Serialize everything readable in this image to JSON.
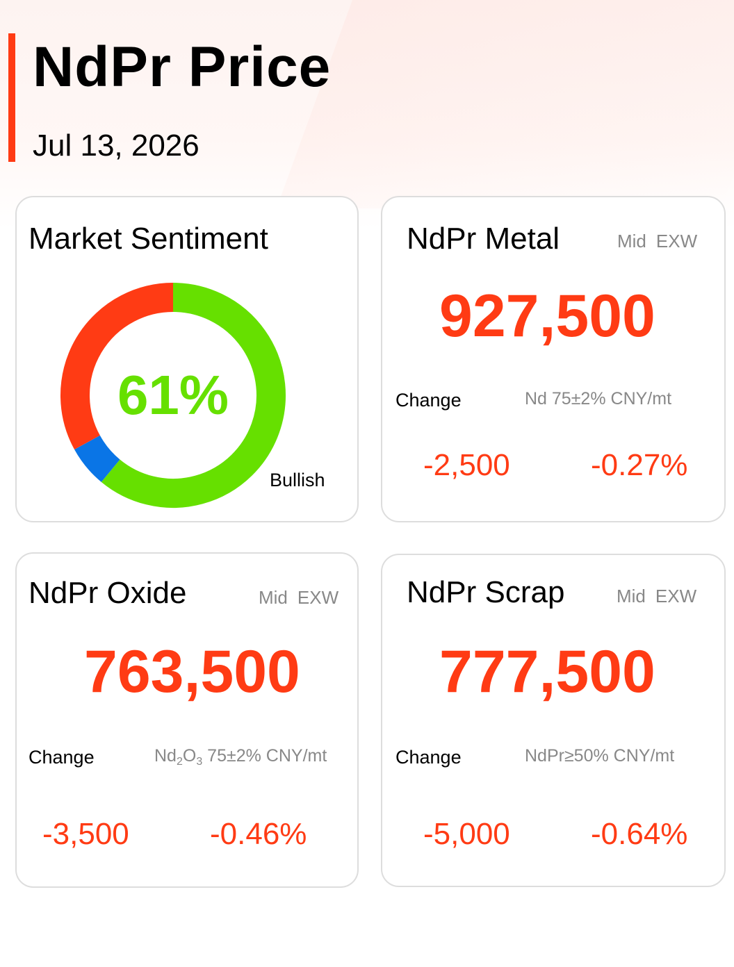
{
  "header": {
    "title": "NdPr Price",
    "date": "Jul 13, 2026"
  },
  "colors": {
    "accent": "#ff3b14",
    "bullish": "#66e000",
    "bearish": "#ff3b14",
    "neutral": "#0a75e6",
    "muted_text": "#888888"
  },
  "sentiment": {
    "title": "Market Sentiment",
    "percent_text": "61%",
    "label": "Bullish",
    "segments": [
      {
        "name": "Bullish",
        "value": 61,
        "color": "#66e000"
      },
      {
        "name": "Neutral",
        "value": 6,
        "color": "#0a75e6"
      },
      {
        "name": "Bearish",
        "value": 33,
        "color": "#ff3b14"
      }
    ]
  },
  "metal": {
    "title": "NdPr Metal",
    "mid": "Mid",
    "basis": "EXW",
    "price": "927,500",
    "change_label": "Change",
    "spec": "Nd 75±2% CNY/mt",
    "change_abs": "-2,500",
    "change_pct": "-0.27%"
  },
  "oxide": {
    "title": "NdPr Oxide",
    "mid": "Mid",
    "basis": "EXW",
    "price": "763,500",
    "change_label": "Change",
    "spec_prefix": "Nd",
    "spec_sub1": "2",
    "spec_mid": "O",
    "spec_sub2": "3",
    "spec_rest": " 75±2% CNY/mt",
    "change_abs": "-3,500",
    "change_pct": "-0.46%"
  },
  "scrap": {
    "title": "NdPr Scrap",
    "mid": "Mid",
    "basis": "EXW",
    "price": "777,500",
    "change_label": "Change",
    "spec": "NdPr≥50% CNY/mt",
    "change_abs": "-5,000",
    "change_pct": "-0.64%"
  }
}
